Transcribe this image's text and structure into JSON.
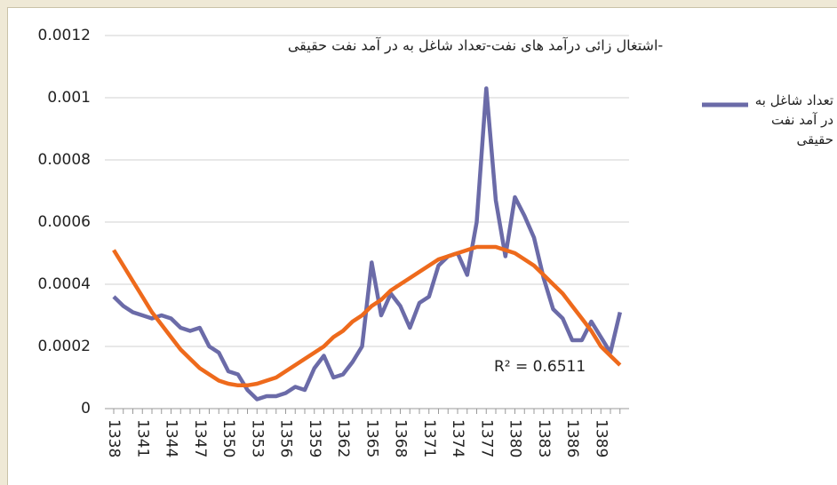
{
  "chart_data": {
    "type": "line",
    "title": "-اشتغال زائی درآمد های نفت-تعداد شاغل به در آمد نفت حقیقی",
    "categories": [
      "1338",
      null,
      null,
      "1341",
      null,
      null,
      "1344",
      null,
      null,
      "1347",
      null,
      null,
      "1350",
      null,
      null,
      "1353",
      null,
      null,
      "1356",
      null,
      null,
      "1359",
      null,
      null,
      "1362",
      null,
      null,
      "1365",
      null,
      null,
      "1368",
      null,
      null,
      "1371",
      null,
      null,
      "1374",
      null,
      null,
      "1377",
      null,
      null,
      "1380",
      null,
      null,
      "1383",
      null,
      null,
      "1386",
      null,
      null,
      "1389",
      null,
      null
    ],
    "series": [
      {
        "name": "تعداد شاغل به در آمد نفت حقیقی",
        "color": "#6b6ba8",
        "values": [
          0.00036,
          0.00033,
          0.00031,
          0.0003,
          0.00029,
          0.0003,
          0.00029,
          0.00026,
          0.00025,
          0.00026,
          0.0002,
          0.00018,
          0.00012,
          0.00011,
          6e-05,
          3e-05,
          4e-05,
          4e-05,
          5e-05,
          7e-05,
          6e-05,
          0.00013,
          0.00017,
          0.0001,
          0.00011,
          0.00015,
          0.0002,
          0.00047,
          0.0003,
          0.00037,
          0.00033,
          0.00026,
          0.00034,
          0.00036,
          0.00046,
          0.00049,
          0.0005,
          0.00043,
          0.0006,
          0.00103,
          0.00067,
          0.00049,
          0.00068,
          0.00062,
          0.00055,
          0.00042,
          0.00032,
          0.00029,
          0.00022,
          0.00022,
          0.00028,
          0.00023,
          0.00018,
          0.00031
        ]
      }
    ],
    "trendline": {
      "color": "#ee6a1c",
      "label": "R² = 0.6511",
      "values": [
        0.00051,
        0.00046,
        0.00041,
        0.00036,
        0.00031,
        0.00027,
        0.00023,
        0.00019,
        0.00016,
        0.00013,
        0.00011,
        9e-05,
        8e-05,
        7.5e-05,
        7.5e-05,
        8e-05,
        9e-05,
        0.0001,
        0.00012,
        0.00014,
        0.00016,
        0.00018,
        0.0002,
        0.00023,
        0.00025,
        0.00028,
        0.0003,
        0.00033,
        0.00035,
        0.00038,
        0.0004,
        0.00042,
        0.00044,
        0.00046,
        0.00048,
        0.00049,
        0.0005,
        0.00051,
        0.00052,
        0.00052,
        0.00052,
        0.00051,
        0.0005,
        0.00048,
        0.00046,
        0.00043,
        0.0004,
        0.00037,
        0.00033,
        0.00029,
        0.00025,
        0.0002,
        0.00017,
        0.00014
      ]
    },
    "ylim": [
      0,
      0.0012
    ],
    "yticks": [
      0,
      0.0002,
      0.0004,
      0.0006,
      0.0008,
      0.001,
      0.0012
    ],
    "grid": true
  }
}
